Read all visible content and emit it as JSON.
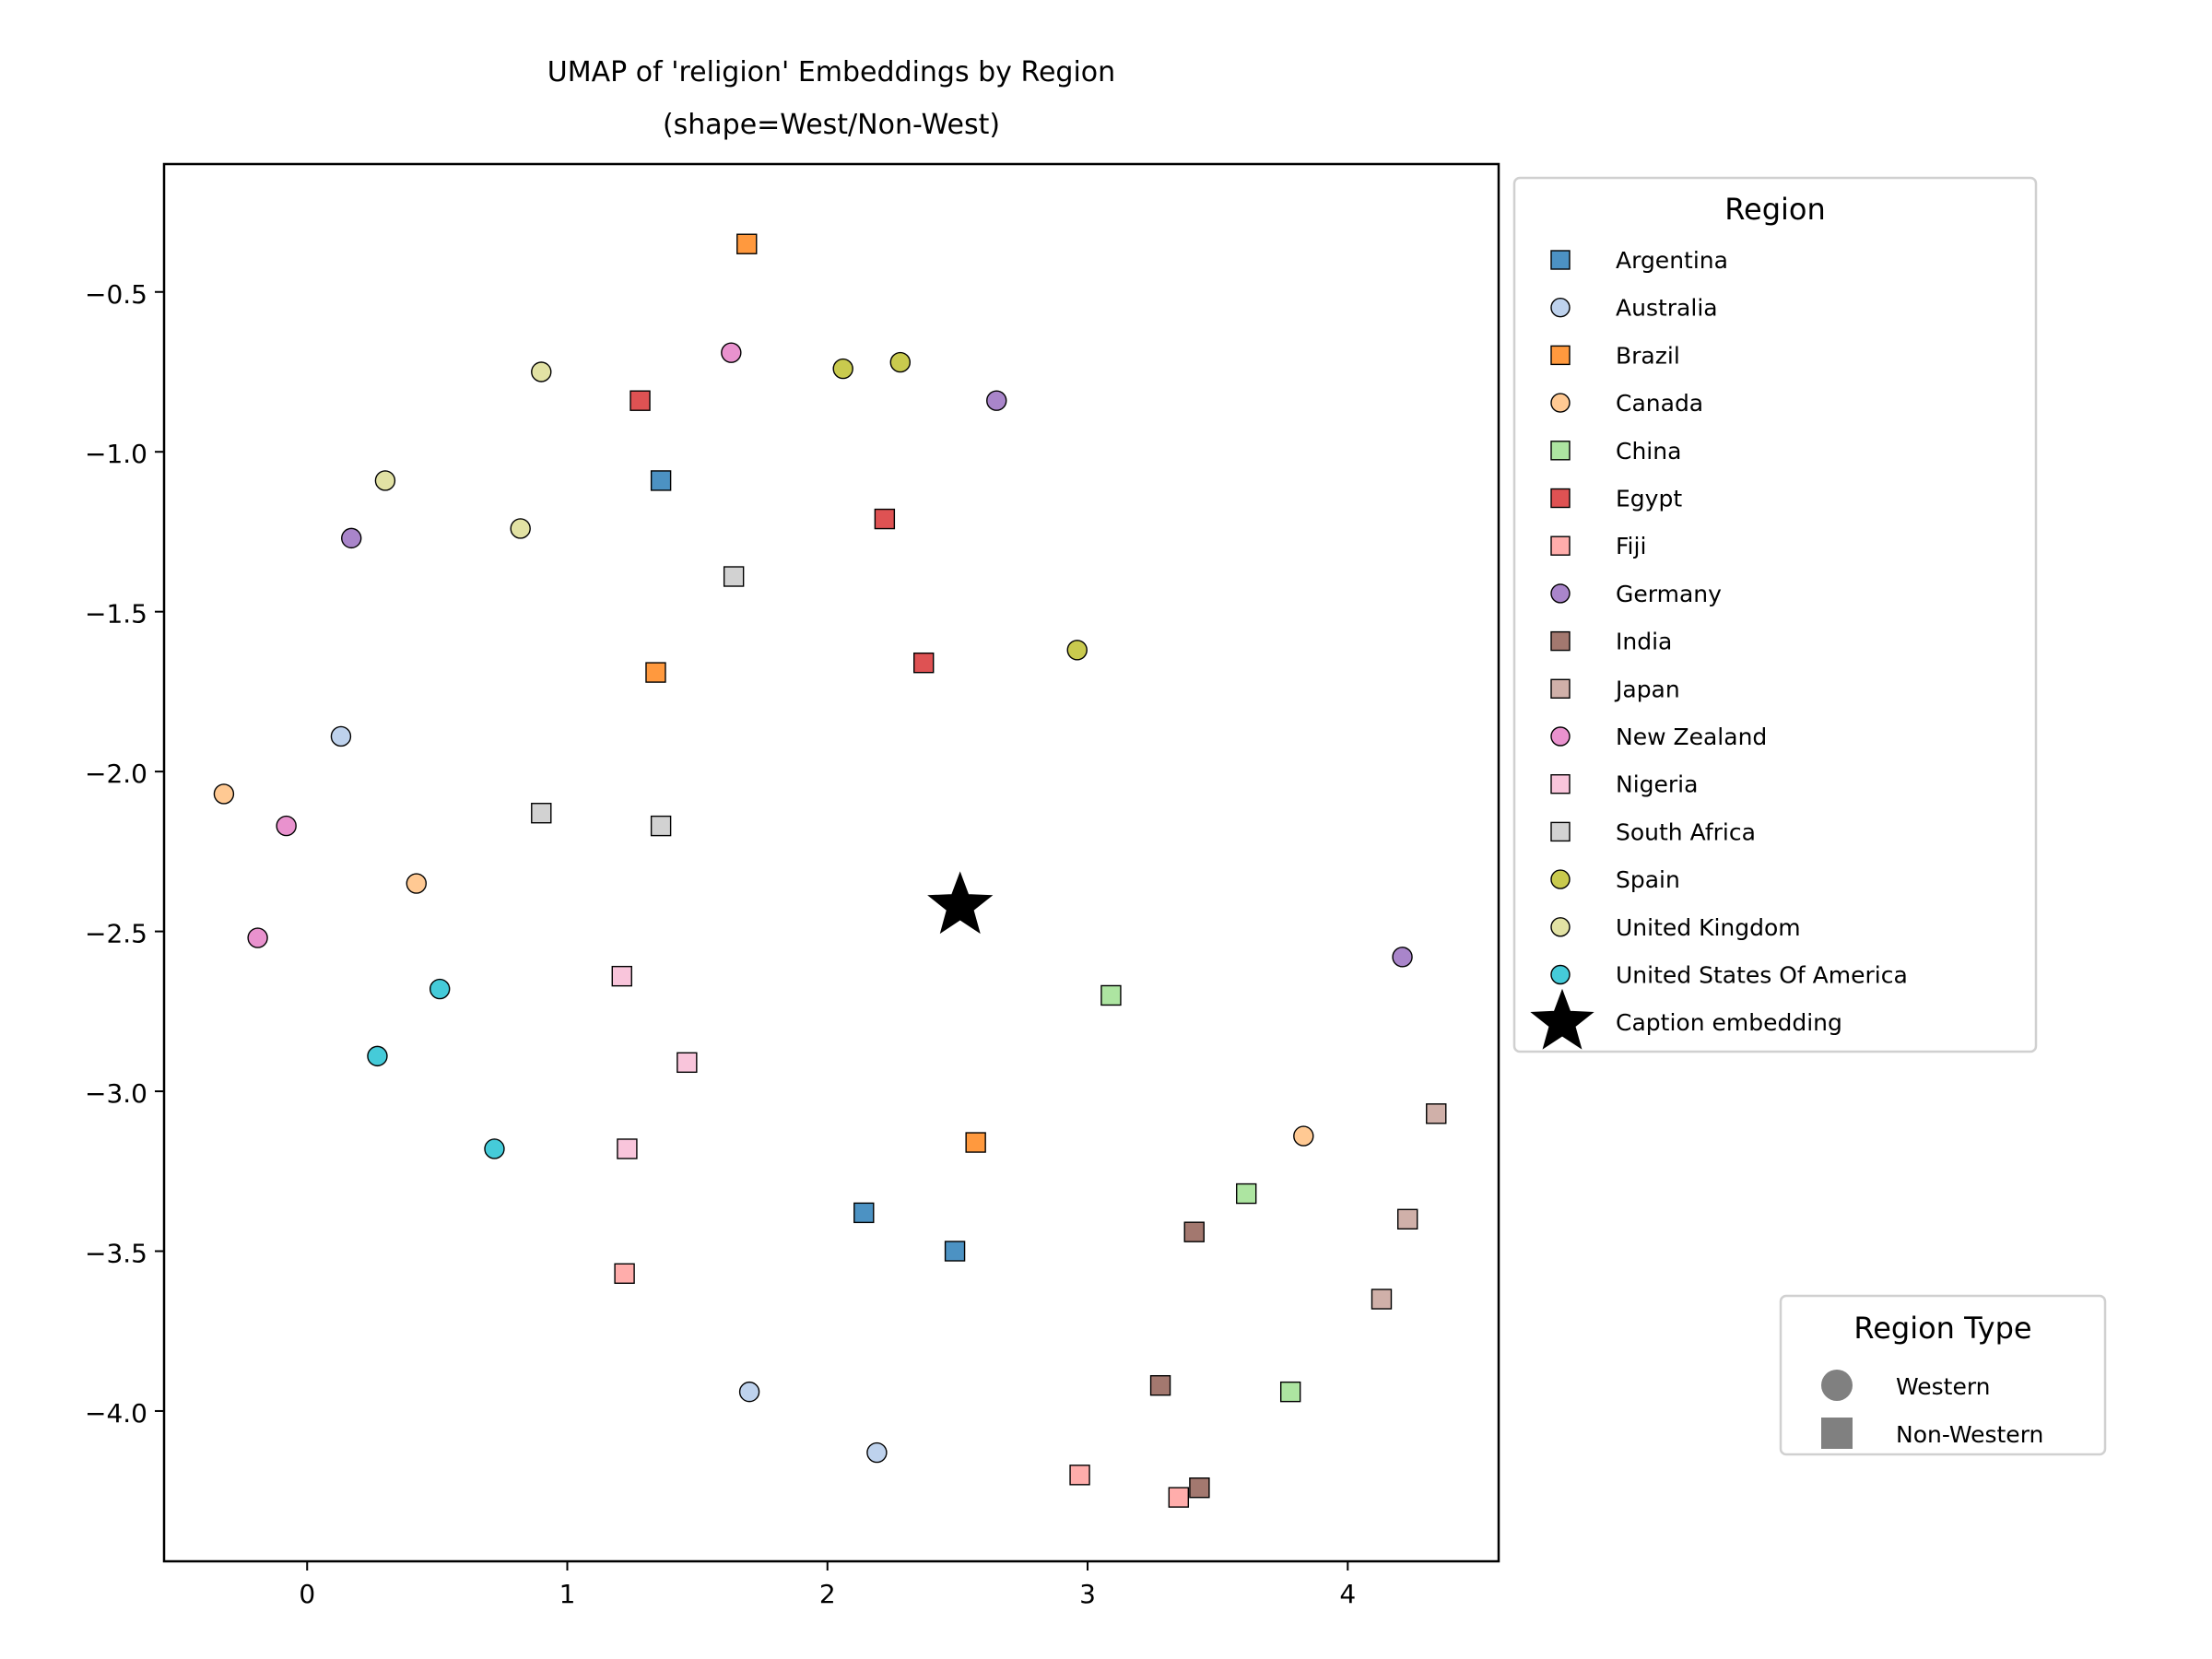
{
  "chart_data": {
    "type": "scatter",
    "title": "UMAP of 'religion' Embeddings by Region",
    "subtitle": "(shape=West/Non-West)",
    "xlabel": "",
    "ylabel": "",
    "xlim": [
      -0.55,
      4.58
    ],
    "ylim": [
      -4.47,
      -0.1
    ],
    "x_ticks": [
      0,
      1,
      2,
      3,
      4
    ],
    "y_ticks": [
      -0.5,
      -1.0,
      -1.5,
      -2.0,
      -2.5,
      -3.0,
      -3.5,
      -4.0
    ],
    "x_tick_labels": [
      "0",
      "1",
      "2",
      "3",
      "4"
    ],
    "y_tick_labels": [
      "−0.5",
      "−1.0",
      "−1.5",
      "−2.0",
      "−2.5",
      "−3.0",
      "−3.5",
      "−4.0"
    ],
    "grid": false,
    "legend_region": {
      "title": "Region",
      "placement": "outside-right-top",
      "caption_label": "Caption embedding"
    },
    "legend_type": {
      "title": "Region Type",
      "placement": "outside-right-bottom",
      "entries": [
        {
          "label": "Western",
          "shape": "circle"
        },
        {
          "label": "Non-Western",
          "shape": "square"
        }
      ]
    },
    "series": [
      {
        "name": "Argentina",
        "color": "#1f77b4",
        "shape": "square",
        "points": [
          [
            1.36,
            -1.09
          ],
          [
            2.14,
            -3.38
          ],
          [
            2.49,
            -3.5
          ]
        ]
      },
      {
        "name": "Australia",
        "color": "#aec7e8",
        "shape": "circle",
        "points": [
          [
            0.13,
            -1.89
          ],
          [
            1.7,
            -3.94
          ],
          [
            2.19,
            -4.13
          ]
        ]
      },
      {
        "name": "Brazil",
        "color": "#ff7f0e",
        "shape": "square",
        "points": [
          [
            1.69,
            -0.35
          ],
          [
            1.34,
            -1.69
          ],
          [
            2.57,
            -3.16
          ]
        ]
      },
      {
        "name": "Canada",
        "color": "#ffbb78",
        "shape": "circle",
        "points": [
          [
            -0.32,
            -2.07
          ],
          [
            0.42,
            -2.35
          ],
          [
            3.83,
            -3.14
          ]
        ]
      },
      {
        "name": "China",
        "color": "#98df8a",
        "shape": "square",
        "points": [
          [
            3.09,
            -2.7
          ],
          [
            3.61,
            -3.32
          ],
          [
            3.78,
            -3.94
          ]
        ]
      },
      {
        "name": "Egypt",
        "color": "#d62728",
        "shape": "square",
        "points": [
          [
            1.28,
            -0.84
          ],
          [
            2.22,
            -1.21
          ],
          [
            2.37,
            -1.66
          ]
        ]
      },
      {
        "name": "Fiji",
        "color": "#ff9896",
        "shape": "square",
        "points": [
          [
            1.22,
            -3.57
          ],
          [
            2.97,
            -4.2
          ],
          [
            3.35,
            -4.27
          ]
        ]
      },
      {
        "name": "Germany",
        "color": "#9467bd",
        "shape": "circle",
        "points": [
          [
            2.65,
            -0.84
          ],
          [
            0.17,
            -1.27
          ],
          [
            4.21,
            -2.58
          ]
        ]
      },
      {
        "name": "India",
        "color": "#8c564b",
        "shape": "square",
        "points": [
          [
            3.41,
            -3.44
          ],
          [
            3.28,
            -3.92
          ],
          [
            3.43,
            -4.24
          ]
        ]
      },
      {
        "name": "Japan",
        "color": "#c49c94",
        "shape": "square",
        "points": [
          [
            4.34,
            -3.07
          ],
          [
            4.23,
            -3.4
          ],
          [
            4.13,
            -3.65
          ]
        ]
      },
      {
        "name": "New Zealand",
        "color": "#e377c2",
        "shape": "circle",
        "points": [
          [
            1.63,
            -0.69
          ],
          [
            -0.08,
            -2.17
          ],
          [
            -0.19,
            -2.52
          ]
        ]
      },
      {
        "name": "Nigeria",
        "color": "#f7b6d2",
        "shape": "square",
        "points": [
          [
            1.21,
            -2.64
          ],
          [
            1.46,
            -2.91
          ],
          [
            1.23,
            -3.18
          ]
        ]
      },
      {
        "name": "South Africa",
        "color": "#c7c7c7",
        "shape": "square",
        "points": [
          [
            1.64,
            -1.39
          ],
          [
            0.9,
            -2.13
          ],
          [
            1.36,
            -2.17
          ]
        ]
      },
      {
        "name": "Spain",
        "color": "#bcbd22",
        "shape": "circle",
        "points": [
          [
            2.06,
            -0.74
          ],
          [
            2.28,
            -0.72
          ],
          [
            2.96,
            -1.62
          ]
        ]
      },
      {
        "name": "United Kingdom",
        "color": "#dbdb8d",
        "shape": "circle",
        "points": [
          [
            0.9,
            -0.75
          ],
          [
            0.3,
            -1.09
          ],
          [
            0.82,
            -1.24
          ]
        ]
      },
      {
        "name": "United States Of America",
        "color": "#17becf",
        "shape": "circle",
        "points": [
          [
            0.51,
            -2.68
          ],
          [
            0.27,
            -2.89
          ],
          [
            0.72,
            -3.18
          ]
        ]
      }
    ],
    "caption_point": {
      "label": "Caption embedding",
      "x": 2.51,
      "y": -2.42,
      "color": "#000000",
      "shape": "star"
    }
  }
}
